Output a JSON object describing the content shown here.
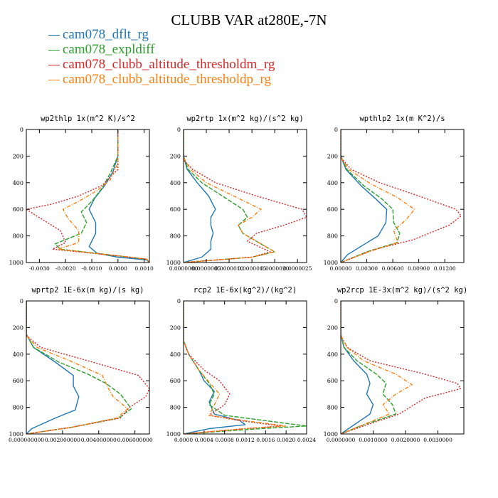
{
  "title": "CLUBB VAR at280E,-7N",
  "legend": [
    {
      "name": "cam078_dflt_rg",
      "color": "#1f77b4"
    },
    {
      "name": "cam078_expldiff",
      "color": "#2ca02c"
    },
    {
      "name": "cam078_clubb_altitude_thresholdm_rg",
      "color": "#d62728"
    },
    {
      "name": "cam078_clubb_altitude_thresholdp_rg",
      "color": "#ff7f0e"
    }
  ],
  "chart_data": [
    {
      "type": "line",
      "title": "wp2thlp  1x(m^2 K)/s^2",
      "xlim": [
        -0.0035,
        0.0012
      ],
      "ylim": [
        1000,
        0
      ],
      "xticks": [
        -0.003,
        -0.002,
        -0.001,
        0.0,
        0.001
      ],
      "xtick_labels": [
        "-0.0030",
        "-0.0020",
        "-0.0010",
        "0.0000",
        "0.0010"
      ],
      "yticks": [
        0,
        200,
        400,
        600,
        800,
        1000
      ],
      "ytick_labels": [
        "0",
        "200",
        "400",
        "600",
        "800",
        "1000"
      ],
      "series": [
        {
          "name": "cam078_dflt_rg",
          "x": [
            0,
            0,
            -0.0002,
            -0.0005,
            -0.0009,
            -0.0011,
            -0.00085,
            -0.00085,
            -0.0011,
            -0.0008,
            0,
            0.0011,
            0.0012
          ],
          "y": [
            0,
            200,
            320,
            420,
            520,
            600,
            700,
            780,
            880,
            930,
            960,
            980,
            1000
          ]
        },
        {
          "name": "cam078_expldiff",
          "x": [
            0,
            0,
            -0.0003,
            -0.0006,
            -0.001,
            -0.0014,
            -0.0012,
            -0.0014,
            -0.0024,
            -0.0022,
            0,
            0.0011,
            0.0012
          ],
          "y": [
            0,
            200,
            330,
            440,
            540,
            620,
            700,
            780,
            860,
            900,
            950,
            975,
            1000
          ]
        },
        {
          "name": "cam078_clubb_altitude_thresholdm_rg",
          "x": [
            0,
            0,
            -0.0006,
            -0.0015,
            -0.0025,
            -0.0035,
            -0.0031,
            -0.0022,
            -0.002,
            -0.0025,
            0,
            0.0011,
            0.0012
          ],
          "y": [
            0,
            300,
            420,
            500,
            560,
            600,
            650,
            760,
            850,
            900,
            950,
            975,
            1000
          ]
        },
        {
          "name": "cam078_clubb_altitude_thresholdp_rg",
          "x": [
            0,
            0,
            -0.0003,
            -0.0008,
            -0.0015,
            -0.0021,
            -0.0019,
            -0.0015,
            -0.0015,
            -0.0023,
            0,
            0.0011,
            0.0012
          ],
          "y": [
            0,
            250,
            380,
            460,
            540,
            600,
            670,
            760,
            850,
            900,
            950,
            975,
            1000
          ]
        }
      ]
    },
    {
      "type": "line",
      "title": "wp2rtp  1x(m^2 kg)/(s^2 kg)",
      "xlim": [
        0,
        2.7e-06
      ],
      "ylim": [
        1000,
        0
      ],
      "xticks": [
        0,
        5e-07,
        1e-06,
        1.5e-06,
        2e-06,
        2.5e-06
      ],
      "xtick_labels": [
        "0.0000000",
        "0.0000005",
        "0.0000010",
        "0.0000015",
        "0.0000020",
        "0.0000025"
      ],
      "yticks": [
        0,
        200,
        400,
        600,
        800,
        1000
      ],
      "ytick_labels": [
        "0",
        "200",
        "400",
        "600",
        "800",
        "1000"
      ],
      "series": [
        {
          "name": "cam078_dflt_rg",
          "x": [
            0,
            0,
            8e-08,
            3e-07,
            5.5e-07,
            7e-07,
            6e-07,
            6e-07,
            6.5e-07,
            6e-07,
            6e-07,
            4e-07,
            0
          ],
          "y": [
            0,
            200,
            300,
            400,
            500,
            600,
            660,
            720,
            780,
            840,
            900,
            960,
            1000
          ]
        },
        {
          "name": "cam078_expldiff",
          "x": [
            0,
            0,
            1e-07,
            4e-07,
            8.5e-07,
            1.3e-06,
            1.4e-06,
            1.2e-06,
            1.3e-06,
            1.6e-06,
            2e-06,
            1.5e-06,
            0
          ],
          "y": [
            0,
            200,
            300,
            400,
            500,
            600,
            660,
            720,
            780,
            840,
            920,
            960,
            1000
          ]
        },
        {
          "name": "cam078_clubb_altitude_thresholdm_rg",
          "x": [
            0,
            0,
            2e-07,
            7e-07,
            1.6e-06,
            2.6e-06,
            2.7e-06,
            2.2e-06,
            1.6e-06,
            1.4e-06,
            1.9e-06,
            1.5e-06,
            0
          ],
          "y": [
            0,
            230,
            300,
            400,
            500,
            600,
            660,
            720,
            780,
            840,
            920,
            960,
            1000
          ]
        },
        {
          "name": "cam078_clubb_altitude_thresholdp_rg",
          "x": [
            0,
            0,
            1.5e-07,
            5e-07,
            1.1e-06,
            1.7e-06,
            1.5e-06,
            1.2e-06,
            1.3e-06,
            1.6e-06,
            2e-06,
            1.5e-06,
            0
          ],
          "y": [
            0,
            210,
            300,
            400,
            500,
            600,
            660,
            720,
            780,
            840,
            920,
            960,
            1000
          ]
        }
      ]
    },
    {
      "type": "line",
      "title": "wpthlp2  1x(m K^2)/s",
      "xlim": [
        0,
        0.0142
      ],
      "ylim": [
        1000,
        0
      ],
      "xticks": [
        0,
        0.003,
        0.006,
        0.009,
        0.012
      ],
      "xtick_labels": [
        "0.00000",
        "0.00300",
        "0.00600",
        "0.00900",
        "0.01200"
      ],
      "yticks": [
        0,
        200,
        400,
        600,
        800,
        1000
      ],
      "ytick_labels": [
        "0",
        "200",
        "400",
        "600",
        "800",
        "1000"
      ],
      "series": [
        {
          "name": "cam078_dflt_rg",
          "x": [
            0,
            0,
            0.0006,
            0.0023,
            0.004,
            0.0053,
            0.0052,
            0.0043,
            0.0028,
            0.0008,
            0
          ],
          "y": [
            0,
            200,
            300,
            420,
            520,
            600,
            700,
            800,
            860,
            940,
            1000
          ]
        },
        {
          "name": "cam078_expldiff",
          "x": [
            0,
            0,
            0.0007,
            0.0026,
            0.0047,
            0.006,
            0.0061,
            0.0068,
            0.0065,
            0.003,
            0
          ],
          "y": [
            0,
            200,
            300,
            420,
            520,
            600,
            700,
            780,
            850,
            920,
            1000
          ]
        },
        {
          "name": "cam078_clubb_altitude_thresholdm_rg",
          "x": [
            0,
            0,
            0.0012,
            0.0045,
            0.009,
            0.0133,
            0.0139,
            0.0125,
            0.0083,
            0.004,
            0
          ],
          "y": [
            0,
            210,
            300,
            400,
            500,
            600,
            650,
            720,
            830,
            900,
            1000
          ]
        },
        {
          "name": "cam078_clubb_altitude_thresholdp_rg",
          "x": [
            0,
            0,
            0.0009,
            0.0035,
            0.0065,
            0.0085,
            0.0075,
            0.0061,
            0.0066,
            0.0032,
            0
          ],
          "y": [
            0,
            210,
            300,
            410,
            510,
            600,
            680,
            760,
            850,
            920,
            1000
          ]
        }
      ]
    },
    {
      "type": "line",
      "title": "wprtp2  1E-6x(m kg)/(s kg)",
      "xlim": [
        0,
        0.0068
      ],
      "ylim": [
        1000,
        0
      ],
      "xticks": [
        0,
        0.002,
        0.004,
        0.006
      ],
      "xtick_labels": [
        "0.000000000",
        "0.002000000",
        "0.004000000",
        "0.006000000"
      ],
      "yticks": [
        0,
        200,
        400,
        600,
        800,
        1000
      ],
      "ytick_labels": [
        "0",
        "200",
        "400",
        "600",
        "800",
        "1000"
      ],
      "series": [
        {
          "name": "cam078_dflt_rg",
          "x": [
            0,
            0,
            0.0004,
            0.0016,
            0.0026,
            0.0026,
            0.0029,
            0.0027,
            0.0016,
            0.0003,
            0
          ],
          "y": [
            0,
            250,
            350,
            460,
            560,
            640,
            720,
            820,
            880,
            960,
            1000
          ]
        },
        {
          "name": "cam078_expldiff",
          "x": [
            0,
            0,
            0.0004,
            0.0018,
            0.0034,
            0.0044,
            0.0052,
            0.0058,
            0.0051,
            0.0025,
            0
          ],
          "y": [
            0,
            250,
            350,
            460,
            550,
            620,
            700,
            810,
            880,
            950,
            1000
          ]
        },
        {
          "name": "cam078_clubb_altitude_thresholdm_rg",
          "x": [
            0,
            0,
            0.0008,
            0.0034,
            0.0062,
            0.0068,
            0.0066,
            0.0057,
            0.0052,
            0.0025,
            0
          ],
          "y": [
            0,
            260,
            350,
            450,
            560,
            660,
            720,
            800,
            880,
            950,
            1000
          ]
        },
        {
          "name": "cam078_clubb_altitude_thresholdp_rg",
          "x": [
            0,
            0,
            0.0006,
            0.0024,
            0.0042,
            0.0045,
            0.0048,
            0.0056,
            0.005,
            0.0025,
            0
          ],
          "y": [
            0,
            260,
            350,
            450,
            560,
            650,
            720,
            810,
            880,
            950,
            1000
          ]
        }
      ]
    },
    {
      "type": "line",
      "title": "rcp2  1E-6x(kg^2)/(kg^2)",
      "xlim": [
        0,
        0.0024
      ],
      "ylim": [
        1000,
        0
      ],
      "xticks": [
        0,
        0.0004,
        0.0008,
        0.0012,
        0.0016,
        0.002,
        0.0024
      ],
      "xtick_labels": [
        "0.0000",
        "0.0004",
        "0.0008",
        "0.0012",
        "0.0016",
        "0.0020",
        "0.0024"
      ],
      "yticks": [
        0,
        200,
        400,
        600,
        800,
        1000
      ],
      "ytick_labels": [
        "0",
        "200",
        "400",
        "600",
        "800",
        "1000"
      ],
      "series": [
        {
          "name": "cam078_dflt_rg",
          "x": [
            0,
            0,
            0.0001,
            0.0003,
            0.0004,
            0.0006,
            0.0005,
            0.0006,
            0.0011,
            0.0012,
            0.0005,
            0
          ],
          "y": [
            0,
            300,
            400,
            520,
            600,
            680,
            760,
            850,
            900,
            930,
            960,
            1000
          ]
        },
        {
          "name": "cam078_expldiff",
          "x": [
            0,
            0,
            0.0001,
            0.0003,
            0.0005,
            0.0006,
            0.0005,
            0.0008,
            0.0016,
            0.0024,
            0.0015,
            0
          ],
          "y": [
            0,
            300,
            400,
            520,
            620,
            700,
            780,
            860,
            900,
            940,
            960,
            1000
          ]
        },
        {
          "name": "cam078_clubb_altitude_thresholdm_rg",
          "x": [
            0,
            0,
            0.0001,
            0.0004,
            0.0007,
            0.0009,
            0.0008,
            0.0005,
            0.0011,
            0.0019,
            0.0012,
            0
          ],
          "y": [
            0,
            300,
            400,
            520,
            600,
            700,
            780,
            860,
            900,
            940,
            960,
            1000
          ]
        },
        {
          "name": "cam078_clubb_altitude_thresholdp_rg",
          "x": [
            0,
            0,
            0.0001,
            0.0003,
            0.0005,
            0.0007,
            0.0006,
            0.0005,
            0.0012,
            0.002,
            0.0012,
            0
          ],
          "y": [
            0,
            300,
            400,
            520,
            610,
            700,
            780,
            860,
            900,
            940,
            960,
            1000
          ]
        }
      ]
    },
    {
      "type": "line",
      "title": "wp2rcp  1E-3x(m^2 kg)/(s^2 kg)",
      "xlim": [
        0,
        0.0038
      ],
      "ylim": [
        1000,
        0
      ],
      "xticks": [
        0,
        0.001,
        0.002,
        0.003
      ],
      "xtick_labels": [
        "0.0000000",
        "0.0010000",
        "0.0020000",
        "0.0030000"
      ],
      "yticks": [
        0,
        200,
        400,
        600,
        800,
        1000
      ],
      "ytick_labels": [
        "0",
        "200",
        "400",
        "600",
        "800",
        "1000"
      ],
      "series": [
        {
          "name": "cam078_dflt_rg",
          "x": [
            0,
            0,
            0.0001,
            0.0004,
            0.0008,
            0.0009,
            0.0008,
            0.001,
            0.0009,
            0.0003,
            0
          ],
          "y": [
            0,
            250,
            350,
            450,
            550,
            620,
            700,
            780,
            850,
            950,
            1000
          ]
        },
        {
          "name": "cam078_expldiff",
          "x": [
            0,
            0,
            0.0001,
            0.0005,
            0.0011,
            0.0014,
            0.0013,
            0.0016,
            0.0017,
            0.0006,
            0
          ],
          "y": [
            0,
            250,
            350,
            450,
            550,
            620,
            700,
            780,
            850,
            940,
            1000
          ]
        },
        {
          "name": "cam078_clubb_altitude_thresholdm_rg",
          "x": [
            0,
            0,
            0.0002,
            0.0009,
            0.0026,
            0.0036,
            0.0037,
            0.0026,
            0.0018,
            0.0007,
            0
          ],
          "y": [
            0,
            260,
            350,
            450,
            550,
            620,
            660,
            730,
            850,
            940,
            1000
          ]
        },
        {
          "name": "cam078_clubb_altitude_thresholdp_rg",
          "x": [
            0,
            0,
            0.0002,
            0.0007,
            0.0017,
            0.0022,
            0.0017,
            0.0013,
            0.0015,
            0.0006,
            0
          ],
          "y": [
            0,
            260,
            350,
            450,
            550,
            630,
            700,
            780,
            850,
            940,
            1000
          ]
        }
      ]
    }
  ]
}
